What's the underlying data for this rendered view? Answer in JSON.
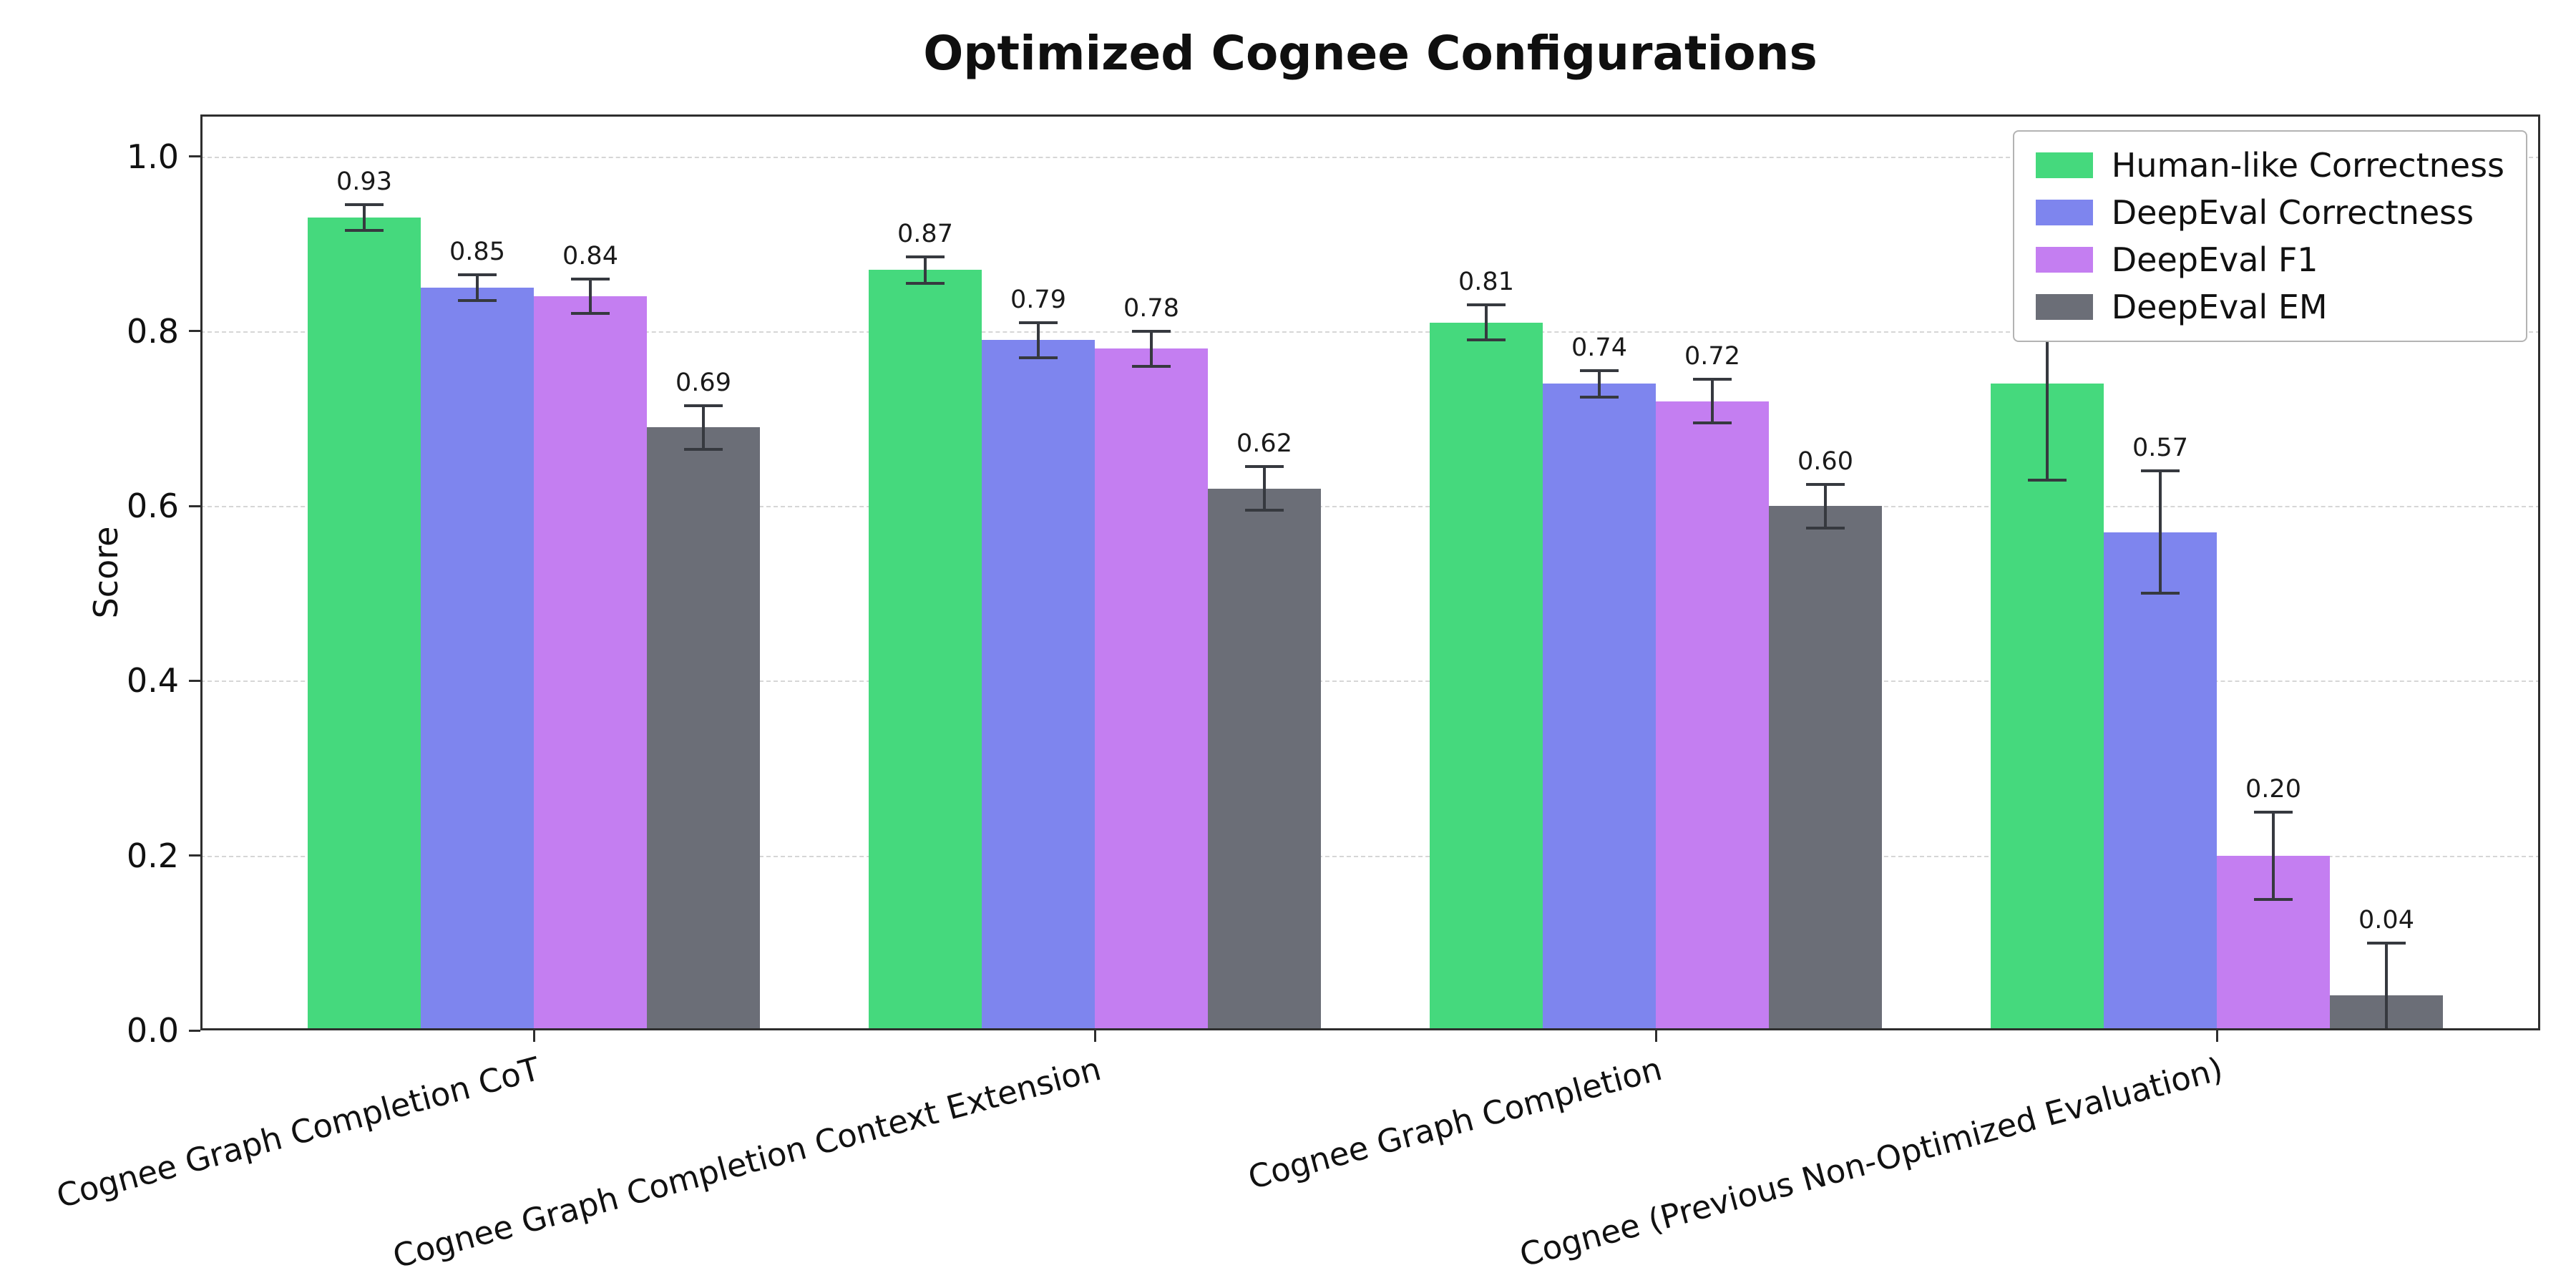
{
  "chart_data": {
    "type": "bar",
    "title": "Optimized Cognee Configurations",
    "ylabel": "Score",
    "categories": [
      "Cognee Graph Completion CoT",
      "Cognee Graph Completion Context Extension",
      "Cognee Graph Completion",
      "Cognee (Previous Non-Optimized Evaluation)"
    ],
    "series": [
      {
        "name": "Human-like Correctness",
        "color": "#45d97d",
        "values": [
          0.93,
          0.87,
          0.81,
          0.74
        ],
        "errors": [
          0.015,
          0.015,
          0.02,
          0.11
        ]
      },
      {
        "name": "DeepEval Correctness",
        "color": "#7e85ee",
        "values": [
          0.85,
          0.79,
          0.74,
          0.57
        ],
        "errors": [
          0.015,
          0.02,
          0.015,
          0.07
        ]
      },
      {
        "name": "DeepEval F1",
        "color": "#c47ef1",
        "values": [
          0.84,
          0.78,
          0.72,
          0.2
        ],
        "errors": [
          0.02,
          0.02,
          0.025,
          0.05
        ]
      },
      {
        "name": "DeepEval EM",
        "color": "#6b6e77",
        "values": [
          0.69,
          0.62,
          0.6,
          0.04
        ],
        "errors": [
          0.025,
          0.025,
          0.025,
          0.06
        ]
      }
    ],
    "yticks": [
      0.0,
      0.2,
      0.4,
      0.6,
      0.8,
      1.0
    ],
    "ylim": [
      0,
      1.048
    ],
    "grid": true,
    "grid_style": "dashed",
    "legend_position": "upper right",
    "value_labels": true,
    "error_bars": true
  }
}
